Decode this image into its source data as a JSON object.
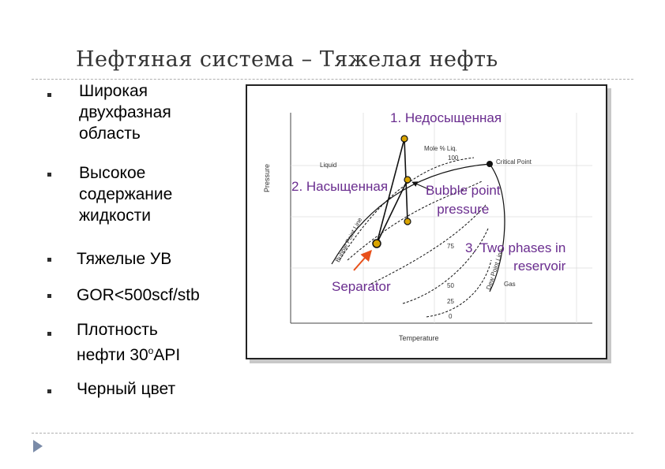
{
  "title": "Нефтяная система – Тяжелая нефть",
  "bullets": [
    {
      "text": "Широкая\nдвухфазная\nобласть"
    },
    {
      "text": "Высокое\nсодержание\nжидкости"
    },
    {
      "text": "Тяжелые УВ"
    },
    {
      "text": "GOR<500scf/stb"
    },
    {
      "text": "Плотность\nнефти 30",
      "sup": "o",
      "tail": "API"
    },
    {
      "text": "Черный цвет"
    }
  ],
  "diagram": {
    "axis_y_label": "Pressure",
    "axis_x_label": "Temperature",
    "mole_label": "Mole % Liq.",
    "liquid_label": "Liquid",
    "gas_label": "Gas",
    "critical_point_label": "Critical Point",
    "bubble_line_label": "Bubble Point Line",
    "dew_line_label": "Dew Point Line",
    "quality_values": [
      "100",
      "75",
      "50",
      "25",
      "0"
    ],
    "annotations": {
      "undersaturated": "1. Недосыщенная",
      "saturated": "2. Насыщенная",
      "bubble_point": "Bubble point\npressure",
      "two_phases": "3. Two phases in\nreservoir",
      "separator": "Separator"
    },
    "colors": {
      "accent": "#6a2d8f",
      "arrow": "#e8501a",
      "marker": "#d9a400"
    }
  }
}
